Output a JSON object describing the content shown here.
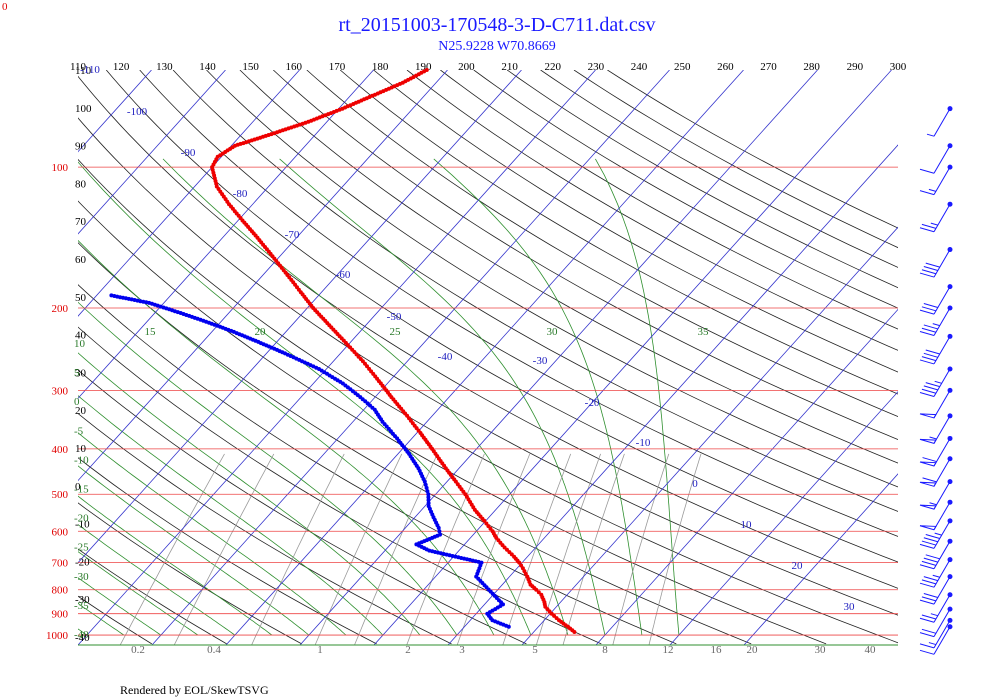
{
  "title": "rt_20151003-170548-3-D-C711.dat.csv",
  "subtitle": "N25.9228 W70.8669",
  "footer": "Rendered by EOL/SkewTSVG",
  "corner_label": "0",
  "colors": {
    "temperature": "#ee0000",
    "dewpoint": "#0000ee",
    "isobar": "#ee4444",
    "isotherm": "#3333cc",
    "dry_adiabat": "#222222",
    "moist_adiabat": "#2f8f2f",
    "mixing_ratio": "#9a9a9a",
    "wind": "#1a1aff"
  },
  "chart_data": {
    "type": "skew-t",
    "pressure_levels": [
      100,
      200,
      300,
      400,
      500,
      600,
      700,
      800,
      900,
      1000
    ],
    "top_axis_ticks": [
      110,
      120,
      130,
      140,
      150,
      160,
      170,
      180,
      190,
      200,
      210,
      220,
      230,
      240,
      250,
      260,
      270,
      280,
      290,
      300
    ],
    "left_axis_ticks": [
      "110",
      "100",
      "90",
      "80",
      "70",
      "60",
      "50",
      "40",
      "30",
      "20",
      "10",
      "0",
      "-10",
      "-20",
      "-30",
      "-40"
    ],
    "isotherm_labels": [
      "-110",
      "-100",
      "-90",
      "-80",
      "-70",
      "-60",
      "-50",
      "-40",
      "-30",
      "-20",
      "-10",
      "0",
      "10",
      "20",
      "30"
    ],
    "moist_adiabat_labels": [
      "15",
      "20",
      "25",
      "30",
      "35"
    ],
    "moist_adiabat_left_labels": [
      "10",
      "5",
      "0",
      "-5",
      "-10",
      "-15",
      "-20",
      "-25",
      "-30",
      "-35",
      "-40"
    ],
    "mixing_ratio_labels": [
      "0.2",
      "0.4",
      "1",
      "2",
      "3",
      "5",
      "8",
      "12",
      "16",
      "20",
      "30",
      "40"
    ],
    "temperature": [
      {
        "p": 985,
        "t": 25.5
      },
      {
        "p": 960,
        "t": 24.0
      },
      {
        "p": 930,
        "t": 22.0
      },
      {
        "p": 900,
        "t": 20.2
      },
      {
        "p": 870,
        "t": 18.5
      },
      {
        "p": 850,
        "t": 17.8
      },
      {
        "p": 820,
        "t": 16.5
      },
      {
        "p": 800,
        "t": 15.2
      },
      {
        "p": 780,
        "t": 13.8
      },
      {
        "p": 750,
        "t": 12.4
      },
      {
        "p": 720,
        "t": 10.8
      },
      {
        "p": 700,
        "t": 9.6
      },
      {
        "p": 680,
        "t": 8.2
      },
      {
        "p": 650,
        "t": 5.8
      },
      {
        "p": 620,
        "t": 3.5
      },
      {
        "p": 600,
        "t": 2.2
      },
      {
        "p": 570,
        "t": -0.2
      },
      {
        "p": 540,
        "t": -2.8
      },
      {
        "p": 500,
        "t": -6.0
      },
      {
        "p": 470,
        "t": -8.8
      },
      {
        "p": 440,
        "t": -11.8
      },
      {
        "p": 400,
        "t": -16.0
      },
      {
        "p": 370,
        "t": -19.5
      },
      {
        "p": 340,
        "t": -23.4
      },
      {
        "p": 310,
        "t": -27.8
      },
      {
        "p": 300,
        "t": -29.3
      },
      {
        "p": 280,
        "t": -32.5
      },
      {
        "p": 260,
        "t": -36.0
      },
      {
        "p": 240,
        "t": -40.0
      },
      {
        "p": 220,
        "t": -44.4
      },
      {
        "p": 200,
        "t": -49.2
      },
      {
        "p": 185,
        "t": -52.8
      },
      {
        "p": 170,
        "t": -56.7
      },
      {
        "p": 155,
        "t": -61.0
      },
      {
        "p": 140,
        "t": -65.8
      },
      {
        "p": 130,
        "t": -69.4
      },
      {
        "p": 120,
        "t": -73.2
      },
      {
        "p": 110,
        "t": -77.0
      },
      {
        "p": 100,
        "t": -80.0
      },
      {
        "p": 95,
        "t": -80.5
      },
      {
        "p": 90,
        "t": -79.5
      },
      {
        "p": 85,
        "t": -76.0
      },
      {
        "p": 80,
        "t": -72.5
      },
      {
        "p": 75,
        "t": -69.5
      },
      {
        "p": 70,
        "t": -66.8
      },
      {
        "p": 66,
        "t": -64.5
      },
      {
        "p": 62,
        "t": -62.8
      }
    ],
    "dewpoint": [
      {
        "p": 960,
        "t": 16.0
      },
      {
        "p": 930,
        "t": 13.0
      },
      {
        "p": 900,
        "t": 11.5
      },
      {
        "p": 860,
        "t": 12.5
      },
      {
        "p": 750,
        "t": 5.5
      },
      {
        "p": 700,
        "t": 4.5
      },
      {
        "p": 660,
        "t": -4.0
      },
      {
        "p": 640,
        "t": -6.5
      },
      {
        "p": 610,
        "t": -4.5
      },
      {
        "p": 590,
        "t": -5.5
      },
      {
        "p": 560,
        "t": -7.5
      },
      {
        "p": 530,
        "t": -9.5
      },
      {
        "p": 500,
        "t": -11.0
      },
      {
        "p": 470,
        "t": -13.0
      },
      {
        "p": 440,
        "t": -15.5
      },
      {
        "p": 410,
        "t": -18.5
      },
      {
        "p": 380,
        "t": -22.0
      },
      {
        "p": 350,
        "t": -26.0
      },
      {
        "p": 330,
        "t": -28.5
      },
      {
        "p": 310,
        "t": -32.0
      },
      {
        "p": 290,
        "t": -36.0
      },
      {
        "p": 270,
        "t": -41.0
      },
      {
        "p": 250,
        "t": -47.5
      },
      {
        "p": 235,
        "t": -53.0
      },
      {
        "p": 225,
        "t": -57.0
      },
      {
        "p": 215,
        "t": -61.5
      },
      {
        "p": 205,
        "t": -66.5
      },
      {
        "p": 195,
        "t": -72.0
      },
      {
        "p": 188,
        "t": -78.0
      }
    ],
    "wind_barbs": [
      {
        "p": 75,
        "kt": 5
      },
      {
        "p": 90,
        "kt": 10
      },
      {
        "p": 100,
        "kt": 15
      },
      {
        "p": 120,
        "kt": 25
      },
      {
        "p": 150,
        "kt": 40
      },
      {
        "p": 180,
        "kt": 30
      },
      {
        "p": 200,
        "kt": 35
      },
      {
        "p": 230,
        "kt": 40
      },
      {
        "p": 270,
        "kt": 45
      },
      {
        "p": 300,
        "kt": 50
      },
      {
        "p": 340,
        "kt": 55
      },
      {
        "p": 380,
        "kt": 60
      },
      {
        "p": 420,
        "kt": 60
      },
      {
        "p": 470,
        "kt": 55
      },
      {
        "p": 520,
        "kt": 50
      },
      {
        "p": 570,
        "kt": 45
      },
      {
        "p": 630,
        "kt": 40
      },
      {
        "p": 690,
        "kt": 35
      },
      {
        "p": 750,
        "kt": 30
      },
      {
        "p": 820,
        "kt": 25
      },
      {
        "p": 880,
        "kt": 20
      },
      {
        "p": 930,
        "kt": 15
      },
      {
        "p": 960,
        "kt": 10
      }
    ]
  }
}
